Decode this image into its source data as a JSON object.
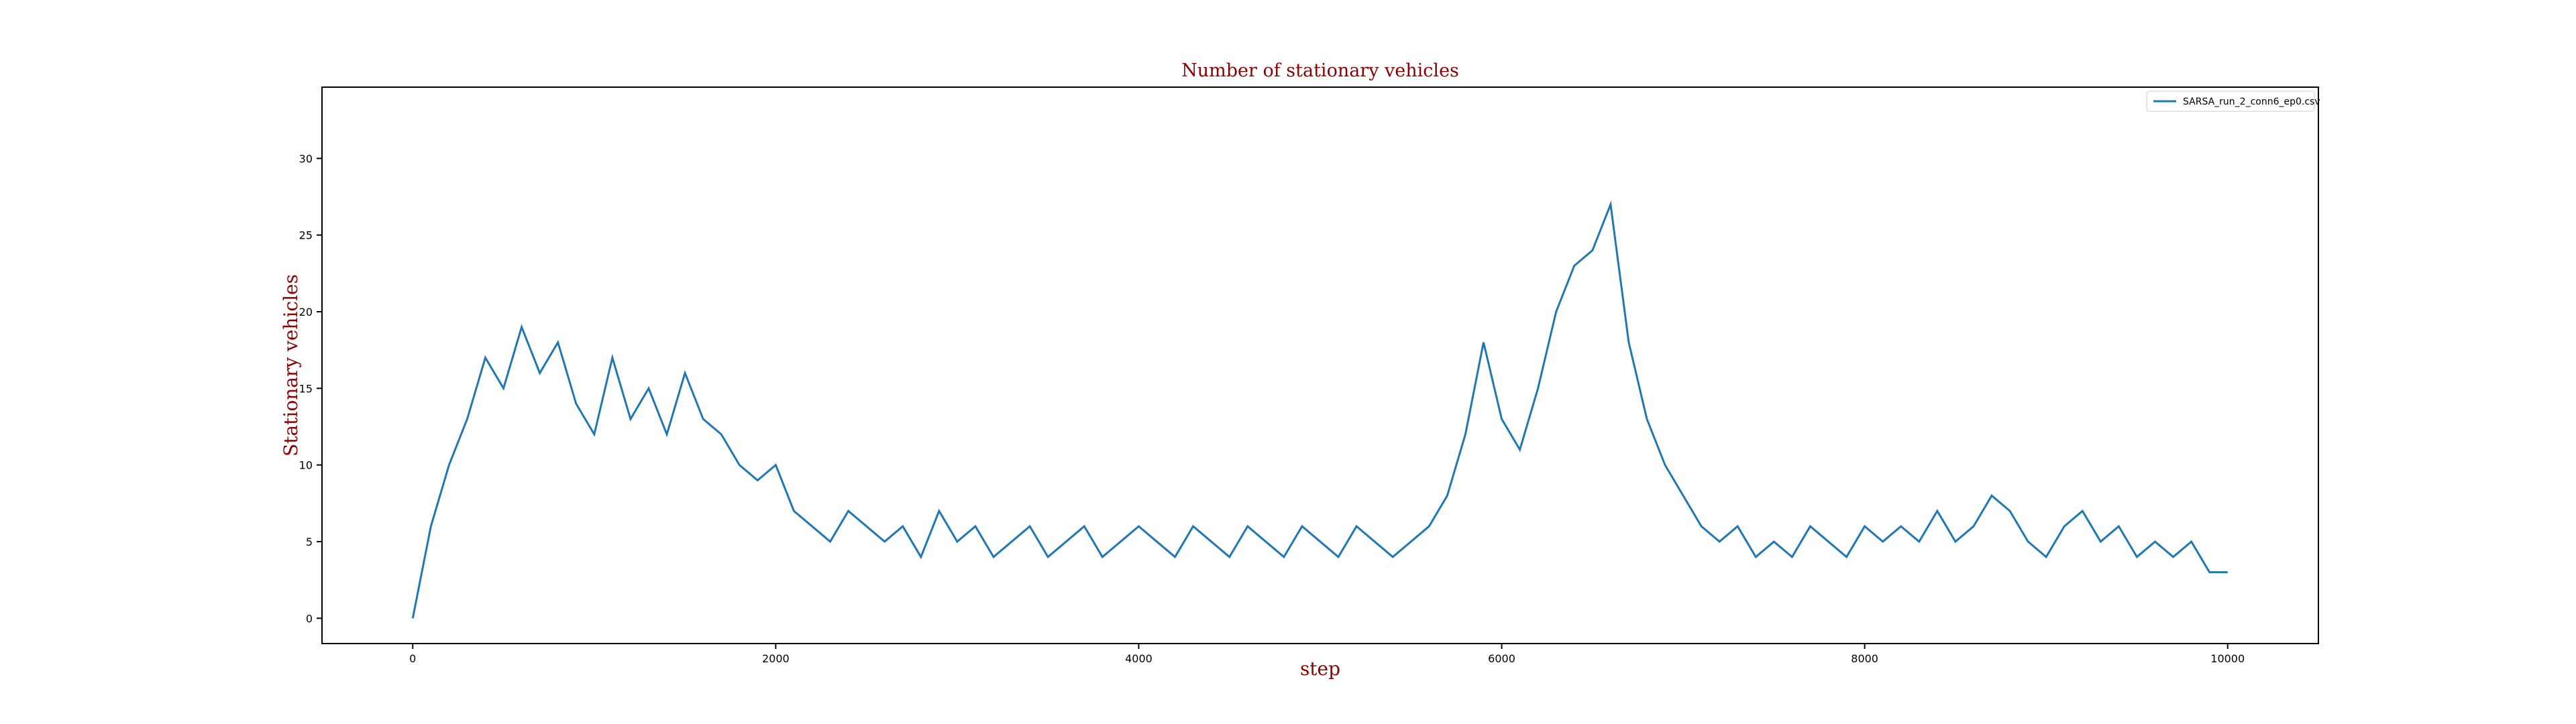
{
  "chart_data": {
    "type": "line",
    "title": "Number of stationary vehicles",
    "xlabel": "step",
    "ylabel": "Stationary vehicles",
    "x": [
      0,
      100,
      200,
      300,
      400,
      500,
      600,
      700,
      800,
      900,
      1000,
      1100,
      1200,
      1300,
      1400,
      1500,
      1600,
      1700,
      1800,
      1900,
      2000,
      2100,
      2200,
      2300,
      2400,
      2500,
      2600,
      2700,
      2800,
      2900,
      3000,
      3100,
      3200,
      3300,
      3400,
      3500,
      3600,
      3700,
      3800,
      3900,
      4000,
      4100,
      4200,
      4300,
      4400,
      4500,
      4600,
      4700,
      4800,
      4900,
      5000,
      5100,
      5200,
      5300,
      5400,
      5500,
      5600,
      5700,
      5800,
      5900,
      6000,
      6100,
      6200,
      6300,
      6400,
      6500,
      6600,
      6700,
      6800,
      6900,
      7000,
      7100,
      7200,
      7300,
      7400,
      7500,
      7600,
      7700,
      7800,
      7900,
      8000,
      8100,
      8200,
      8300,
      8400,
      8500,
      8600,
      8700,
      8800,
      8900,
      9000,
      9100,
      9200,
      9300,
      9400,
      9500,
      9600,
      9700,
      9800,
      9900,
      10000
    ],
    "series": [
      {
        "name": "SARSA_run_2_conn6_ep0.csv",
        "color": "#1f77b4",
        "values": [
          0,
          6,
          10,
          13,
          17,
          15,
          19,
          16,
          18,
          14,
          12,
          17,
          13,
          15,
          12,
          16,
          13,
          12,
          10,
          9,
          10,
          7,
          6,
          5,
          7,
          6,
          5,
          6,
          4,
          7,
          5,
          6,
          4,
          5,
          6,
          4,
          5,
          6,
          4,
          5,
          6,
          5,
          4,
          6,
          5,
          4,
          6,
          5,
          4,
          6,
          5,
          4,
          6,
          5,
          4,
          5,
          6,
          8,
          12,
          18,
          13,
          11,
          15,
          20,
          23,
          24,
          27,
          18,
          13,
          10,
          8,
          6,
          5,
          6,
          4,
          5,
          4,
          6,
          5,
          4,
          6,
          5,
          6,
          5,
          7,
          5,
          6,
          8,
          7,
          5,
          4,
          6,
          7,
          5,
          6,
          4,
          5,
          4,
          5,
          3,
          3
        ]
      }
    ],
    "xlim": [
      -500,
      10500
    ],
    "ylim": [
      -1.65,
      34.65
    ],
    "xticks": [
      0,
      2000,
      4000,
      6000,
      8000,
      10000
    ],
    "yticks": [
      0,
      5,
      10,
      15,
      20,
      25,
      30
    ],
    "legend": "upper right"
  }
}
